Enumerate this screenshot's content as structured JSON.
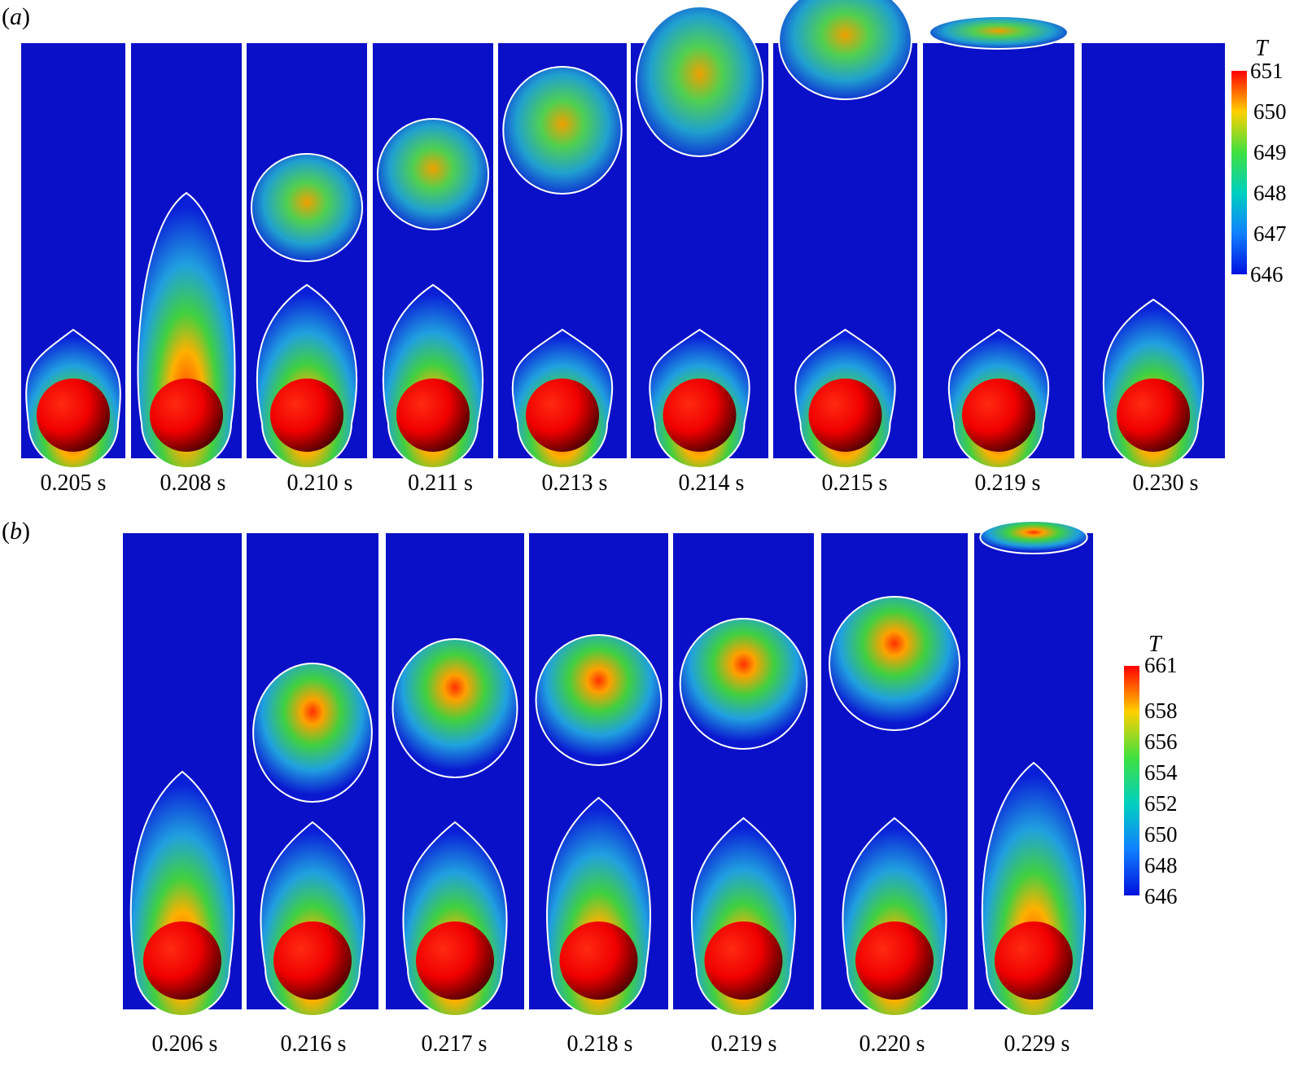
{
  "panel_a": {
    "label": "a",
    "frames": [
      "0.205 s",
      "0.208 s",
      "0.210 s",
      "0.211 s",
      "0.213 s",
      "0.214 s",
      "0.215 s",
      "0.219 s",
      "0.230 s"
    ],
    "colorbar": {
      "title": "T",
      "ticks": [
        "651",
        "650",
        "649",
        "648",
        "647",
        "646"
      ]
    }
  },
  "panel_b": {
    "label": "b",
    "frames": [
      "0.206 s",
      "0.216 s",
      "0.217 s",
      "0.218 s",
      "0.219 s",
      "0.220 s",
      "0.229 s"
    ],
    "colorbar": {
      "title": "T",
      "ticks": [
        "661",
        "658",
        "656",
        "654",
        "652",
        "650",
        "648",
        "646"
      ]
    }
  },
  "colors": {
    "background": "#0a0fc8",
    "interface": "#ffffff",
    "hot": "#ff1a00",
    "sphere_shadow": "#3a0000"
  }
}
